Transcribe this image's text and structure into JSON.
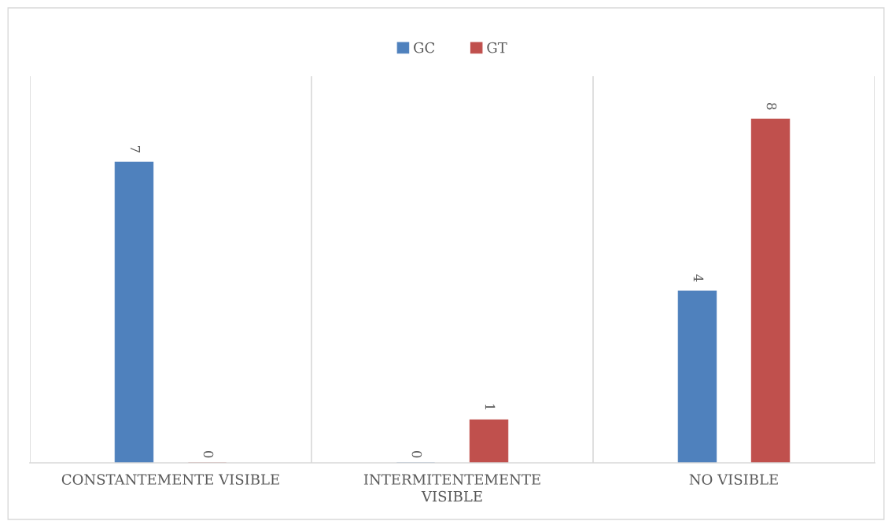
{
  "chart_data": {
    "type": "bar",
    "categories": [
      "CONSTANTEMENTE VISIBLE",
      "INTERMITENTEMENTE\nVISIBLE",
      "NO VISIBLE"
    ],
    "series": [
      {
        "name": "GC",
        "color": "#4f81bd",
        "values": [
          7,
          0,
          4
        ]
      },
      {
        "name": "GT",
        "color": "#c0504d",
        "values": [
          0,
          1,
          8
        ]
      }
    ],
    "data_labels": true,
    "grid": "x",
    "legend": "top"
  }
}
